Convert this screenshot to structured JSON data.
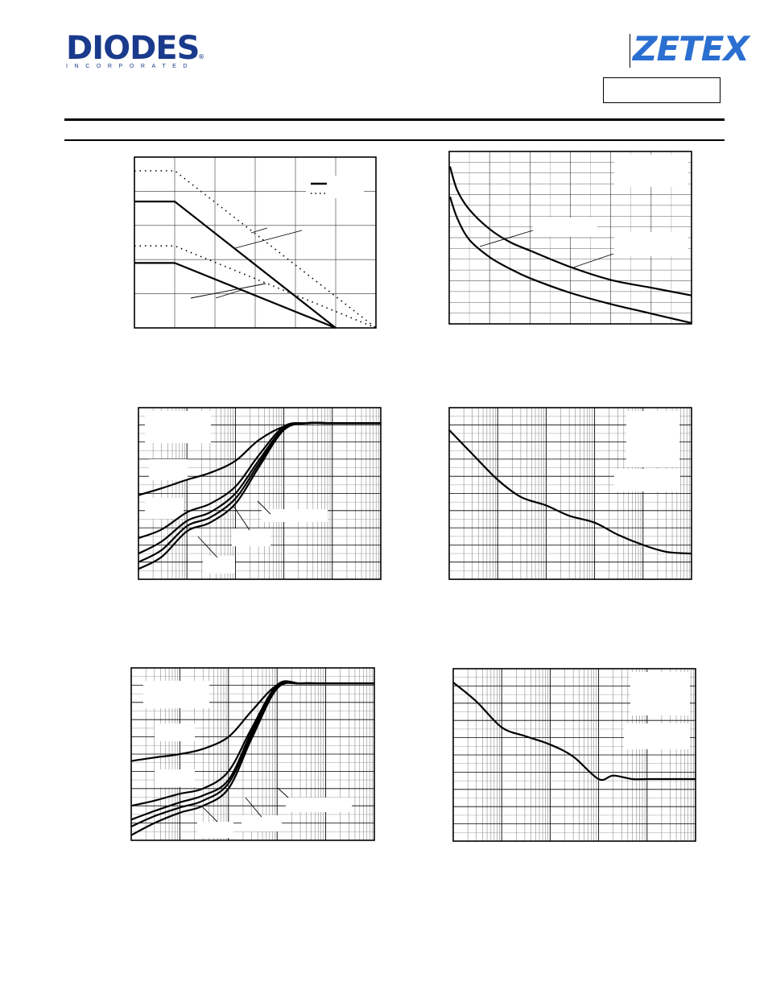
{
  "header": {
    "left_logo": {
      "text": "DIODES",
      "sub": "INCORPORATED",
      "mark": "®",
      "color": "#1a3a8c"
    },
    "right_logo": {
      "text": "ZETEX",
      "color": "#2b6fd1"
    },
    "part_box_text": ""
  },
  "charts": [
    {
      "id": "derating",
      "chart_data": {
        "type": "line",
        "title": "",
        "xlabel": "",
        "ylabel": "",
        "xlim": [
          0,
          6
        ],
        "ylim": [
          0,
          5
        ],
        "grid": true,
        "series": [
          {
            "style": "solid",
            "x": [
              0,
              1,
              5
            ],
            "y": [
              3.7,
              3.7,
              0
            ]
          },
          {
            "style": "solid",
            "x": [
              0,
              1,
              5
            ],
            "y": [
              1.9,
              1.9,
              0
            ]
          },
          {
            "style": "dotted",
            "x": [
              0,
              1,
              6
            ],
            "y": [
              4.6,
              4.6,
              0
            ]
          },
          {
            "style": "dotted",
            "x": [
              0,
              1,
              6
            ],
            "y": [
              2.4,
              2.4,
              0
            ]
          }
        ]
      }
    },
    {
      "id": "transient",
      "chart_data": {
        "type": "line",
        "title": "",
        "xlabel": "",
        "ylabel": "",
        "xlim": [
          0,
          6
        ],
        "ylim": [
          0,
          4
        ],
        "grid": true,
        "series": [
          {
            "x": [
              0.02,
              0.2,
              0.5,
              1,
              1.5,
              2,
              3,
              4,
              5,
              6
            ],
            "y": [
              3.65,
              3.1,
              2.65,
              2.2,
              1.9,
              1.7,
              1.32,
              1.02,
              0.84,
              0.66
            ]
          },
          {
            "x": [
              0.02,
              0.2,
              0.5,
              1,
              1.5,
              2,
              3,
              4,
              5,
              6
            ],
            "y": [
              2.95,
              2.45,
              1.95,
              1.55,
              1.28,
              1.06,
              0.72,
              0.46,
              0.24,
              0.02
            ]
          }
        ]
      }
    },
    {
      "id": "gain-1",
      "chart_data": {
        "type": "line",
        "title": "",
        "xlabel": "",
        "ylabel": "",
        "xscale": "log",
        "xlim": [
          0.001,
          100
        ],
        "ylim": [
          0,
          10
        ],
        "grid": true,
        "series": [
          {
            "x": [
              0.001,
              0.003,
              0.01,
              0.03,
              0.1,
              0.3,
              1,
              3,
              10,
              100
            ],
            "y": [
              4.9,
              5.3,
              5.8,
              6.2,
              6.9,
              8.1,
              8.9,
              9.1,
              9.1,
              9.1
            ]
          },
          {
            "x": [
              0.001,
              0.003,
              0.01,
              0.03,
              0.1,
              0.3,
              1,
              3,
              10,
              100
            ],
            "y": [
              2.4,
              2.9,
              3.9,
              4.4,
              5.4,
              7.2,
              8.9,
              9.1,
              9.1,
              9.1
            ]
          },
          {
            "x": [
              0.001,
              0.003,
              0.01,
              0.03,
              0.1,
              0.3,
              1,
              3,
              10,
              100
            ],
            "y": [
              1.5,
              2.2,
              3.4,
              3.9,
              5.0,
              6.9,
              8.8,
              9.1,
              9.1,
              9.1
            ]
          },
          {
            "x": [
              0.001,
              0.003,
              0.01,
              0.03,
              0.1,
              0.3,
              1,
              3,
              10,
              100
            ],
            "y": [
              1.0,
              1.7,
              3.1,
              3.6,
              4.7,
              6.7,
              8.8,
              9.1,
              9.1,
              9.1
            ]
          },
          {
            "x": [
              0.001,
              0.003,
              0.01,
              0.03,
              0.1,
              0.3,
              1,
              3,
              10,
              100
            ],
            "y": [
              0.6,
              1.3,
              2.8,
              3.3,
              4.4,
              6.5,
              8.7,
              9.1,
              9.1,
              9.1
            ]
          }
        ]
      }
    },
    {
      "id": "decay-1",
      "chart_data": {
        "type": "line",
        "title": "",
        "xlabel": "",
        "ylabel": "",
        "xscale": "log",
        "xlim": [
          0.001,
          100
        ],
        "ylim": [
          0,
          10
        ],
        "grid": true,
        "series": [
          {
            "x": [
              0.001,
              0.003,
              0.01,
              0.03,
              0.1,
              0.3,
              1,
              3,
              10,
              30,
              100
            ],
            "y": [
              8.7,
              7.3,
              5.8,
              4.8,
              4.3,
              3.7,
              3.3,
              2.6,
              2.0,
              1.6,
              1.5
            ]
          }
        ]
      }
    },
    {
      "id": "gain-2",
      "chart_data": {
        "type": "line",
        "title": "",
        "xlabel": "",
        "ylabel": "",
        "xscale": "log",
        "xlim": [
          0.001,
          100
        ],
        "ylim": [
          0,
          10
        ],
        "grid": true,
        "series": [
          {
            "x": [
              0.001,
              0.003,
              0.01,
              0.03,
              0.1,
              0.3,
              1,
              3,
              10,
              100
            ],
            "y": [
              4.6,
              4.8,
              5.0,
              5.3,
              6.0,
              7.5,
              9.0,
              9.1,
              9.1,
              9.1
            ]
          },
          {
            "x": [
              0.001,
              0.003,
              0.01,
              0.03,
              0.1,
              0.3,
              1,
              3,
              10,
              100
            ],
            "y": [
              2.0,
              2.3,
              2.7,
              3.0,
              4.0,
              6.5,
              9.0,
              9.1,
              9.1,
              9.1
            ]
          },
          {
            "x": [
              0.001,
              0.003,
              0.01,
              0.03,
              0.1,
              0.3,
              1,
              3,
              10,
              100
            ],
            "y": [
              1.2,
              1.7,
              2.2,
              2.6,
              3.5,
              6.3,
              9.0,
              9.1,
              9.1,
              9.1
            ]
          },
          {
            "x": [
              0.001,
              0.003,
              0.01,
              0.03,
              0.1,
              0.3,
              1,
              3,
              10,
              100
            ],
            "y": [
              0.8,
              1.4,
              1.9,
              2.3,
              3.3,
              6.1,
              8.9,
              9.1,
              9.1,
              9.1
            ]
          },
          {
            "x": [
              0.001,
              0.003,
              0.01,
              0.03,
              0.1,
              0.3,
              1,
              3,
              10,
              100
            ],
            "y": [
              0.3,
              1.0,
              1.6,
              2.0,
              3.0,
              5.9,
              8.8,
              9.1,
              9.1,
              9.1
            ]
          }
        ]
      }
    },
    {
      "id": "decay-2",
      "chart_data": {
        "type": "line",
        "title": "",
        "xlabel": "",
        "ylabel": "",
        "xscale": "log",
        "xlim": [
          0.001,
          100
        ],
        "ylim": [
          0,
          10
        ],
        "grid": true,
        "series": [
          {
            "x": [
              0.001,
              0.003,
              0.01,
              0.03,
              0.1,
              0.3,
              1,
              2,
              5,
              10,
              100
            ],
            "y": [
              9.2,
              8.1,
              6.6,
              6.1,
              5.6,
              4.9,
              3.6,
              3.8,
              3.6,
              3.6,
              3.6
            ]
          }
        ]
      }
    }
  ]
}
